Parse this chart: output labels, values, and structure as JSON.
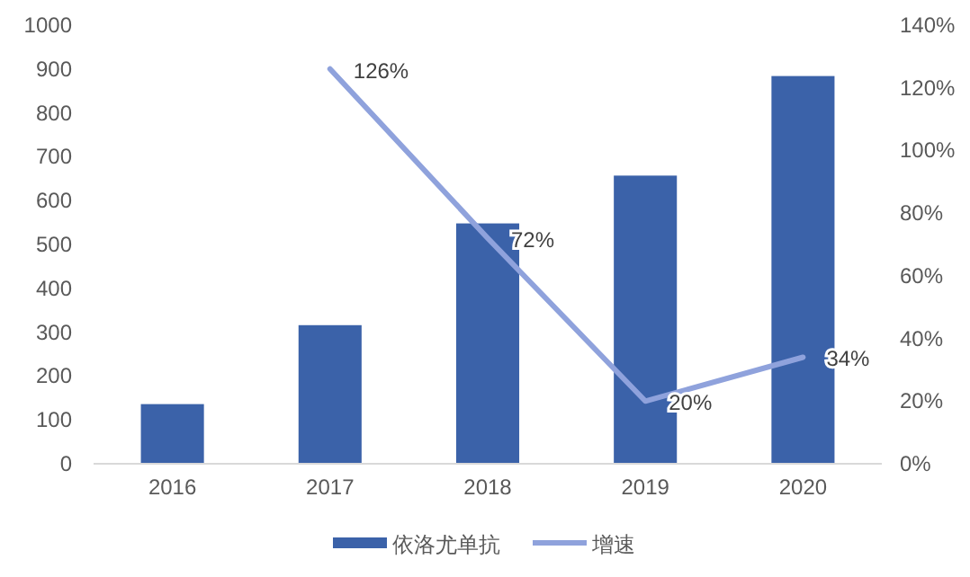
{
  "chart_data": {
    "type": "bar",
    "categories": [
      "2016",
      "2017",
      "2018",
      "2019",
      "2020"
    ],
    "series": [
      {
        "name": "依洛尤单抗",
        "color": "#3b62a9",
        "values": [
          136,
          316,
          548,
          657,
          884
        ]
      },
      {
        "name": "增速",
        "type": "line",
        "axis": "y2",
        "color": "#8fa2dc",
        "values": [
          null,
          126,
          72,
          20,
          34
        ],
        "value_labels": [
          null,
          "126%",
          "72%",
          "20%",
          "34%"
        ]
      }
    ],
    "ylim": [
      0,
      1000
    ],
    "yticks": [
      0,
      100,
      200,
      300,
      400,
      500,
      600,
      700,
      800,
      900,
      1000
    ],
    "y2lim": [
      0,
      140
    ],
    "y2ticks": [
      {
        "value": 0,
        "label": "0%"
      },
      {
        "value": 20,
        "label": "20%"
      },
      {
        "value": 40,
        "label": "40%"
      },
      {
        "value": 60,
        "label": "60%"
      },
      {
        "value": 80,
        "label": "80%"
      },
      {
        "value": 100,
        "label": "100%"
      },
      {
        "value": 120,
        "label": "120%"
      },
      {
        "value": 140,
        "label": "140%"
      }
    ],
    "grid": false,
    "legend": "bottom",
    "marker": "none"
  }
}
